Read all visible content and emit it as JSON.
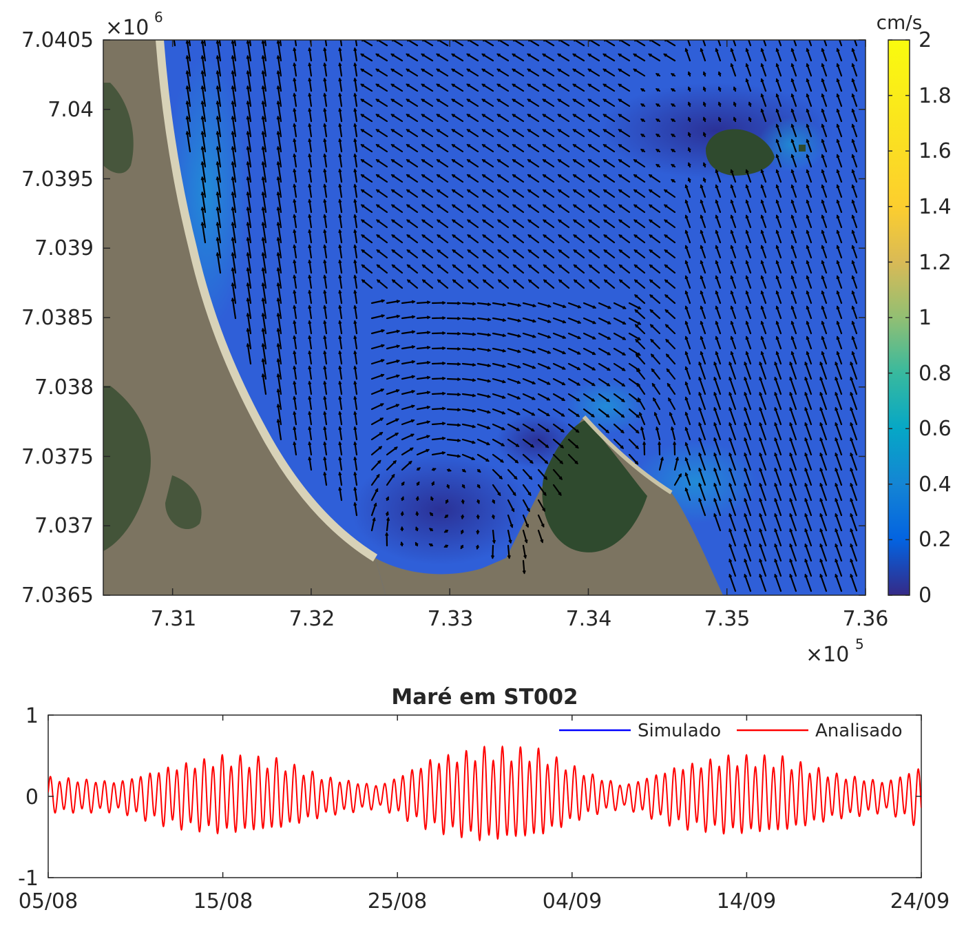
{
  "chart_data": [
    {
      "type": "heatmap",
      "subtype": "current-speed map with velocity vectors over satellite basemap",
      "x_multiplier": "×10",
      "x_exponent": "5",
      "y_multiplier": "×10",
      "y_exponent": "6",
      "xlim": [
        7.305,
        7.36
      ],
      "ylim": [
        7.0365,
        7.0405
      ],
      "xticks": [
        7.31,
        7.32,
        7.33,
        7.34,
        7.35,
        7.36
      ],
      "xtick_labels": [
        "7.31",
        "7.32",
        "7.33",
        "7.34",
        "7.35",
        "7.36"
      ],
      "yticks": [
        7.0365,
        7.037,
        7.0375,
        7.038,
        7.0385,
        7.039,
        7.0395,
        7.04,
        7.0405
      ],
      "ytick_labels": [
        "7.0365",
        "7.037",
        "7.0375",
        "7.038",
        "7.0385",
        "7.039",
        "7.0395",
        "7.04",
        "7.0405"
      ],
      "colorbar": {
        "unit": "cm/s",
        "range": [
          0,
          2
        ],
        "colormap": "parula",
        "ticks": [
          0,
          0.2,
          0.4,
          0.6,
          0.8,
          1,
          1.2,
          1.4,
          1.6,
          1.8,
          2
        ],
        "tick_labels": [
          "0",
          "0.2",
          "0.4",
          "0.6",
          "0.8",
          "1",
          "1.2",
          "1.4",
          "1.6",
          "1.8",
          "2"
        ]
      },
      "colors": {
        "water_low": "#2a2c8f",
        "water_mid": "#2f5fd8",
        "water_high": "#1f8fd6",
        "land": "#7c7461",
        "vegetation": "#2f4a2e",
        "beach": "#d8d2b8",
        "arrows": "#000000"
      }
    },
    {
      "type": "line",
      "title": "Maré em ST002",
      "ylim": [
        -1,
        1
      ],
      "yticks": [
        -1,
        0,
        1
      ],
      "ytick_labels": [
        "-1",
        "0",
        "1"
      ],
      "x_range": [
        "2000-08-05",
        "2000-09-24"
      ],
      "xtick_labels": [
        "05/08",
        "15/08",
        "25/08",
        "04/09",
        "14/09",
        "24/09"
      ],
      "legend_position": "top-right",
      "series": [
        {
          "name": "Simulado",
          "color": "#0000ff",
          "visible_points": "none"
        },
        {
          "name": "Analisado",
          "color": "#ff0000",
          "envelope": {
            "days": [
              "05/08",
              "09/08",
              "12/08",
              "15/08",
              "18/08",
              "21/08",
              "24/08",
              "27/08",
              "30/08",
              "02/09",
              "05/09",
              "07/09",
              "10/09",
              "13/09",
              "16/09",
              "19/09",
              "22/09",
              "24/09"
            ],
            "max": [
              0.25,
              0.2,
              0.4,
              0.52,
              0.48,
              0.25,
              0.15,
              0.5,
              0.62,
              0.6,
              0.3,
              0.15,
              0.4,
              0.52,
              0.5,
              0.3,
              0.2,
              0.4
            ],
            "min": [
              -0.22,
              -0.2,
              -0.4,
              -0.5,
              -0.45,
              -0.25,
              -0.15,
              -0.45,
              -0.6,
              -0.55,
              -0.25,
              -0.15,
              -0.4,
              -0.5,
              -0.48,
              -0.3,
              -0.2,
              -0.4
            ]
          }
        }
      ]
    }
  ]
}
